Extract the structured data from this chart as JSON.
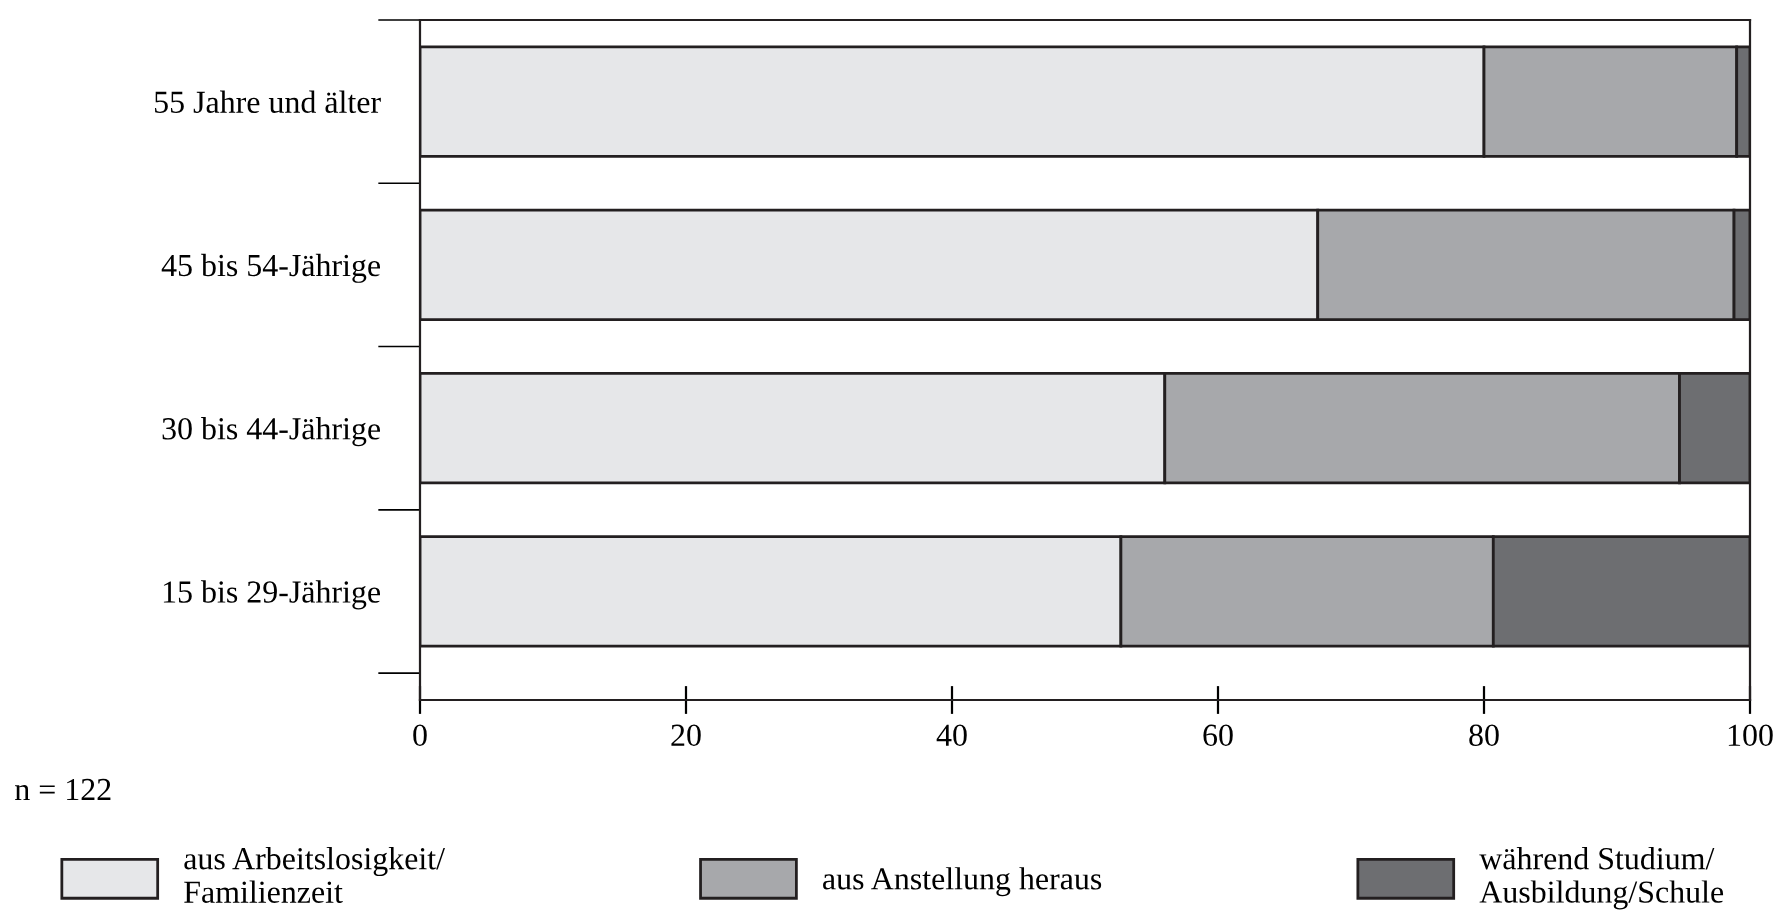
{
  "chart_data": {
    "type": "bar",
    "orientation": "horizontal",
    "stacked": true,
    "categories": [
      "55 Jahre und älter",
      "45 bis 54-Jährige",
      "30 bis 44-Jährige",
      "15 bis 29-Jährige"
    ],
    "series": [
      {
        "name": "aus Arbeitslosigkeit/\nFamilienzeit",
        "color": "#e6e7e9",
        "values": [
          80,
          67.5,
          56,
          52.7
        ]
      },
      {
        "name": "aus Anstellung heraus",
        "color": "#a7a8ab",
        "values": [
          19,
          31.3,
          38.7,
          28
        ]
      },
      {
        "name": "während Studium/\nAusbildung/Schule",
        "color": "#6d6e71",
        "values": [
          1,
          1.2,
          5.3,
          19.3
        ]
      }
    ],
    "xlim": [
      0,
      100
    ],
    "xticks": [
      0,
      20,
      40,
      60,
      80,
      100
    ],
    "grid": false,
    "legend": "bottom",
    "annotations": [
      "n = 122"
    ]
  }
}
